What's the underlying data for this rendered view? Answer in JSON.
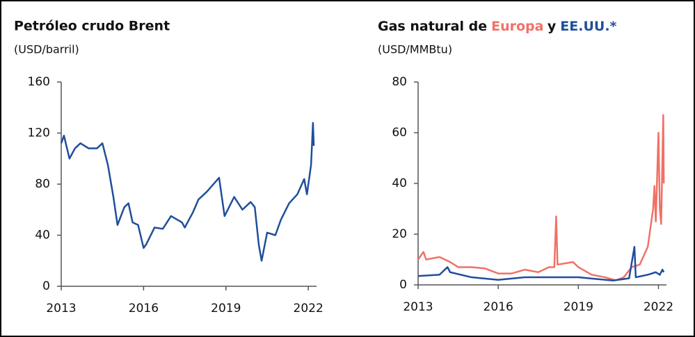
{
  "chart_data": [
    {
      "type": "line",
      "title": "Petróleo crudo Brent",
      "subtitle": "(USD/barril)",
      "xlim": [
        2013,
        2022.3
      ],
      "xticks": [
        2013,
        2016,
        2019,
        2022
      ],
      "ylim": [
        0,
        160
      ],
      "yticks": [
        0,
        40,
        80,
        120,
        160
      ],
      "series": [
        {
          "name": "Brent",
          "color": "#1f4e9c",
          "x": [
            2013.0,
            2013.1,
            2013.3,
            2013.5,
            2013.7,
            2014.0,
            2014.3,
            2014.5,
            2014.7,
            2014.9,
            2015.05,
            2015.3,
            2015.45,
            2015.6,
            2015.8,
            2016.0,
            2016.1,
            2016.4,
            2016.7,
            2017.0,
            2017.4,
            2017.5,
            2017.8,
            2018.0,
            2018.3,
            2018.75,
            2018.95,
            2019.3,
            2019.6,
            2019.9,
            2020.05,
            2020.2,
            2020.3,
            2020.5,
            2020.8,
            2021.0,
            2021.3,
            2021.6,
            2021.85,
            2021.95,
            2022.1,
            2022.17,
            2022.2
          ],
          "values": [
            112,
            118,
            100,
            108,
            112,
            108,
            108,
            112,
            95,
            70,
            48,
            62,
            65,
            50,
            48,
            30,
            33,
            46,
            45,
            55,
            50,
            46,
            58,
            68,
            74,
            85,
            55,
            70,
            60,
            66,
            62,
            32,
            20,
            42,
            40,
            52,
            65,
            72,
            84,
            72,
            95,
            128,
            110
          ]
        }
      ]
    },
    {
      "type": "line",
      "title": [
        "Gas natural de",
        "Europa",
        "y",
        "EE.UU.*"
      ],
      "subtitle": "(USD/MMBtu)",
      "xlim": [
        2013,
        2022.3
      ],
      "xticks": [
        2013,
        2016,
        2019,
        2022
      ],
      "ylim": [
        0,
        80
      ],
      "yticks": [
        0,
        20,
        40,
        60,
        80
      ],
      "series": [
        {
          "name": "Europa",
          "color": "#f07167",
          "x": [
            2013.0,
            2013.2,
            2013.3,
            2013.8,
            2014.2,
            2014.5,
            2015.0,
            2015.5,
            2016.0,
            2016.5,
            2017.0,
            2017.5,
            2017.9,
            2018.1,
            2018.17,
            2018.22,
            2018.8,
            2019.0,
            2019.5,
            2020.0,
            2020.4,
            2020.7,
            2021.0,
            2021.3,
            2021.6,
            2021.8,
            2021.85,
            2021.9,
            2022.0,
            2022.05,
            2022.1,
            2022.18,
            2022.2
          ],
          "values": [
            10,
            13,
            10,
            11,
            9,
            7,
            7,
            6.5,
            4.5,
            4.5,
            6,
            5,
            7,
            7,
            27,
            8,
            9,
            7,
            4,
            3,
            1.8,
            3,
            7,
            8,
            15,
            30,
            39,
            25,
            60,
            30,
            24,
            67,
            40
          ]
        },
        {
          "name": "EE.UU.",
          "color": "#1f4e9c",
          "x": [
            2013.0,
            2013.8,
            2014.1,
            2014.2,
            2015.0,
            2016.0,
            2016.5,
            2017.0,
            2018.0,
            2018.5,
            2019.0,
            2019.5,
            2020.3,
            2020.9,
            2021.1,
            2021.15,
            2021.6,
            2021.9,
            2022.05,
            2022.15,
            2022.2
          ],
          "values": [
            3.5,
            4,
            7,
            5,
            3,
            2,
            2.5,
            3,
            3,
            3,
            3,
            2.5,
            1.7,
            2.6,
            15,
            3,
            4,
            5,
            4,
            6,
            5
          ]
        }
      ]
    }
  ]
}
